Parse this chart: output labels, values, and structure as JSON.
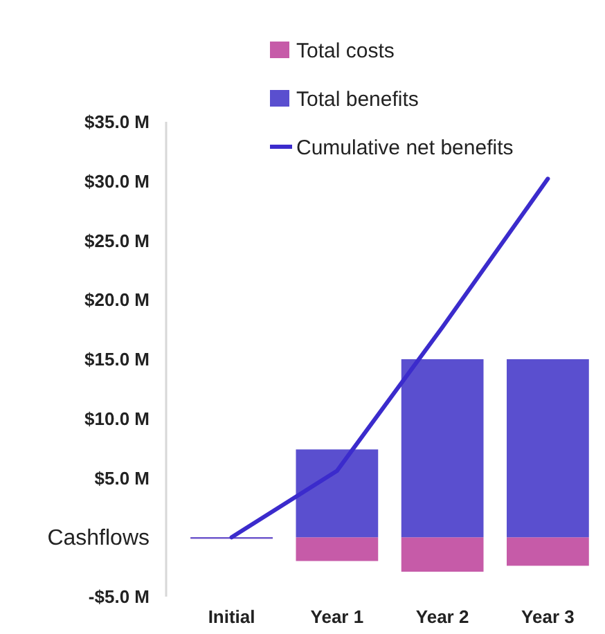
{
  "chart_data": {
    "type": "bar",
    "categories": [
      "Initial",
      "Year 1",
      "Year 2",
      "Year 3"
    ],
    "series": [
      {
        "name": "Total costs",
        "color": "#c65ba8",
        "values": [
          -0.1,
          -2.0,
          -2.9,
          -2.4
        ]
      },
      {
        "name": "Total benefits",
        "color": "#5a4fcf",
        "values": [
          0,
          7.4,
          15.0,
          15.0
        ]
      },
      {
        "name": "Cumulative net benefits",
        "type": "line",
        "color": "#3b2bcc",
        "values": [
          0,
          5.6,
          17.7,
          30.2
        ]
      }
    ],
    "stacked": true,
    "ylim": [
      -5,
      35
    ],
    "yticks": [
      {
        "value": -5,
        "label": "-$5.0 M"
      },
      {
        "value": 0,
        "label": "Cashflows"
      },
      {
        "value": 5,
        "label": "$5.0 M"
      },
      {
        "value": 10,
        "label": "$10.0 M"
      },
      {
        "value": 15,
        "label": "$15.0 M"
      },
      {
        "value": 20,
        "label": "$20.0 M"
      },
      {
        "value": 25,
        "label": "$25.0 M"
      },
      {
        "value": 30,
        "label": "$30.0 M"
      },
      {
        "value": 35,
        "label": "$35.0 M"
      }
    ],
    "legend": "top",
    "grid": false,
    "marker": "none",
    "line_style": "solid"
  }
}
